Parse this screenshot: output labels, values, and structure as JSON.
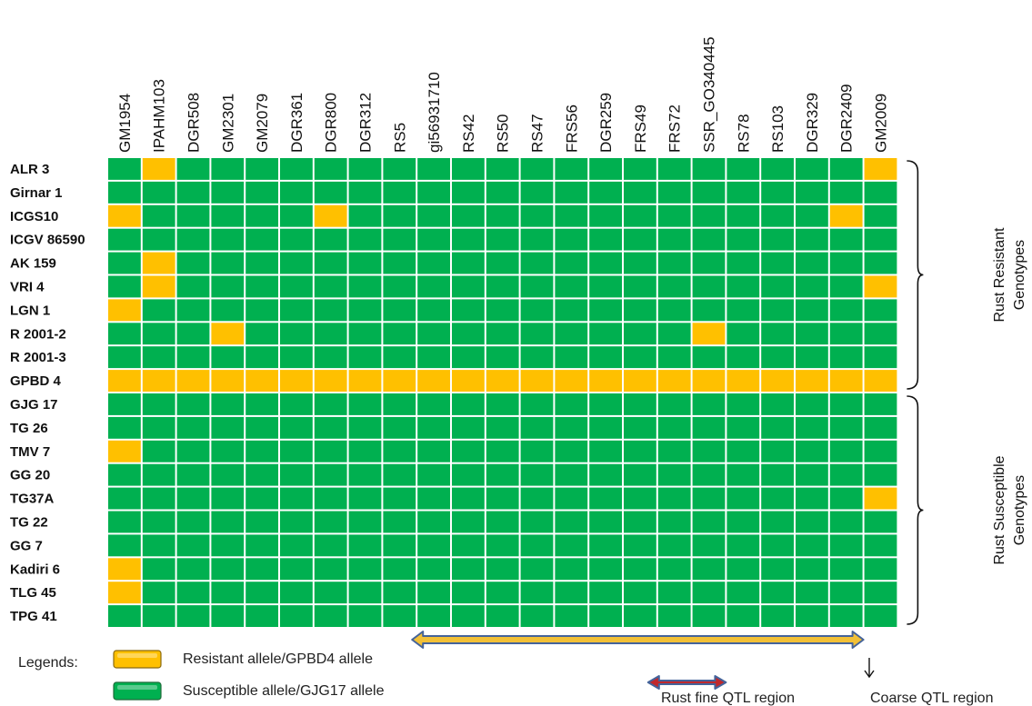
{
  "chart_data": {
    "type": "heatmap",
    "markers": [
      "GM1954",
      "IPAHM103",
      "DGR508",
      "GM2301",
      "GM2079",
      "DGR361",
      "DGR800",
      "DGR312",
      "RS5",
      "gi56931710",
      "RS42",
      "RS50",
      "RS47",
      "FRS56",
      "DGR259",
      "FRS49",
      "FRS72",
      "SSR_GO340445",
      "RS78",
      "RS103",
      "DGR329",
      "DGR2409",
      "GM2009"
    ],
    "genotypes": [
      "ALR 3",
      "Girnar 1",
      "ICGS10",
      "ICGV 86590",
      "AK 159",
      "VRI 4",
      "LGN 1",
      "R 2001-2",
      "R 2001-3",
      "GPBD 4",
      "GJG 17",
      "TG 26",
      "TMV 7",
      "GG 20",
      "TG37A",
      "TG 22",
      "GG 7",
      "Kadiri 6",
      "TLG 45",
      "TPG 41"
    ],
    "values": [
      [
        0,
        1,
        0,
        0,
        0,
        0,
        0,
        0,
        0,
        0,
        0,
        0,
        0,
        0,
        0,
        0,
        0,
        0,
        0,
        0,
        0,
        0,
        1
      ],
      [
        0,
        0,
        0,
        0,
        0,
        0,
        0,
        0,
        0,
        0,
        0,
        0,
        0,
        0,
        0,
        0,
        0,
        0,
        0,
        0,
        0,
        0,
        0
      ],
      [
        1,
        0,
        0,
        0,
        0,
        0,
        1,
        0,
        0,
        0,
        0,
        0,
        0,
        0,
        0,
        0,
        0,
        0,
        0,
        0,
        0,
        1,
        0
      ],
      [
        0,
        0,
        0,
        0,
        0,
        0,
        0,
        0,
        0,
        0,
        0,
        0,
        0,
        0,
        0,
        0,
        0,
        0,
        0,
        0,
        0,
        0,
        0
      ],
      [
        0,
        1,
        0,
        0,
        0,
        0,
        0,
        0,
        0,
        0,
        0,
        0,
        0,
        0,
        0,
        0,
        0,
        0,
        0,
        0,
        0,
        0,
        0
      ],
      [
        0,
        1,
        0,
        0,
        0,
        0,
        0,
        0,
        0,
        0,
        0,
        0,
        0,
        0,
        0,
        0,
        0,
        0,
        0,
        0,
        0,
        0,
        1
      ],
      [
        1,
        0,
        0,
        0,
        0,
        0,
        0,
        0,
        0,
        0,
        0,
        0,
        0,
        0,
        0,
        0,
        0,
        0,
        0,
        0,
        0,
        0,
        0
      ],
      [
        0,
        0,
        0,
        1,
        0,
        0,
        0,
        0,
        0,
        0,
        0,
        0,
        0,
        0,
        0,
        0,
        0,
        1,
        0,
        0,
        0,
        0,
        0
      ],
      [
        0,
        0,
        0,
        0,
        0,
        0,
        0,
        0,
        0,
        0,
        0,
        0,
        0,
        0,
        0,
        0,
        0,
        0,
        0,
        0,
        0,
        0,
        0
      ],
      [
        1,
        1,
        1,
        1,
        1,
        1,
        1,
        1,
        1,
        1,
        1,
        1,
        1,
        1,
        1,
        1,
        1,
        1,
        1,
        1,
        1,
        1,
        1
      ],
      [
        0,
        0,
        0,
        0,
        0,
        0,
        0,
        0,
        0,
        0,
        0,
        0,
        0,
        0,
        0,
        0,
        0,
        0,
        0,
        0,
        0,
        0,
        0
      ],
      [
        0,
        0,
        0,
        0,
        0,
        0,
        0,
        0,
        0,
        0,
        0,
        0,
        0,
        0,
        0,
        0,
        0,
        0,
        0,
        0,
        0,
        0,
        0
      ],
      [
        1,
        0,
        0,
        0,
        0,
        0,
        0,
        0,
        0,
        0,
        0,
        0,
        0,
        0,
        0,
        0,
        0,
        0,
        0,
        0,
        0,
        0,
        0
      ],
      [
        0,
        0,
        0,
        0,
        0,
        0,
        0,
        0,
        0,
        0,
        0,
        0,
        0,
        0,
        0,
        0,
        0,
        0,
        0,
        0,
        0,
        0,
        0
      ],
      [
        0,
        0,
        0,
        0,
        0,
        0,
        0,
        0,
        0,
        0,
        0,
        0,
        0,
        0,
        0,
        0,
        0,
        0,
        0,
        0,
        0,
        0,
        1
      ],
      [
        0,
        0,
        0,
        0,
        0,
        0,
        0,
        0,
        0,
        0,
        0,
        0,
        0,
        0,
        0,
        0,
        0,
        0,
        0,
        0,
        0,
        0,
        0
      ],
      [
        0,
        0,
        0,
        0,
        0,
        0,
        0,
        0,
        0,
        0,
        0,
        0,
        0,
        0,
        0,
        0,
        0,
        0,
        0,
        0,
        0,
        0,
        0
      ],
      [
        1,
        0,
        0,
        0,
        0,
        0,
        0,
        0,
        0,
        0,
        0,
        0,
        0,
        0,
        0,
        0,
        0,
        0,
        0,
        0,
        0,
        0,
        0
      ],
      [
        1,
        0,
        0,
        0,
        0,
        0,
        0,
        0,
        0,
        0,
        0,
        0,
        0,
        0,
        0,
        0,
        0,
        0,
        0,
        0,
        0,
        0,
        0
      ],
      [
        0,
        0,
        0,
        0,
        0,
        0,
        0,
        0,
        0,
        0,
        0,
        0,
        0,
        0,
        0,
        0,
        0,
        0,
        0,
        0,
        0,
        0,
        0
      ]
    ],
    "value_meaning": {
      "1": "Resistant allele/GPBD4 allele",
      "0": "Susceptible allele/GJG17 allele"
    },
    "colors": {
      "resistant": "#FFC000",
      "susceptible": "#00B050",
      "arrow_fill": "#F2C037",
      "arrow_edge": "#44639A",
      "fine_fill": "#C0282C"
    },
    "groups": [
      {
        "label_lines": [
          "Rust Resistant",
          "Genotypes"
        ],
        "first_row": 0,
        "last_row": 9
      },
      {
        "label_lines": [
          "Rust Susceptible",
          "Genotypes"
        ],
        "first_row": 10,
        "last_row": 19
      }
    ],
    "legend": {
      "title": "Legends:",
      "entries": [
        {
          "label": "Resistant allele/GPBD4 allele",
          "color": "#FFC000"
        },
        {
          "label": "Susceptible allele/GJG17 allele",
          "color": "#00B050"
        }
      ]
    },
    "regions": {
      "coarse": {
        "label": "Coarse QTL region",
        "from_marker": "gi56931710",
        "to_marker": "DGR2409"
      },
      "fine": {
        "label": "Rust fine QTL region",
        "from_marker": "FRS72",
        "to_marker": "SSR_GO340445"
      }
    }
  }
}
